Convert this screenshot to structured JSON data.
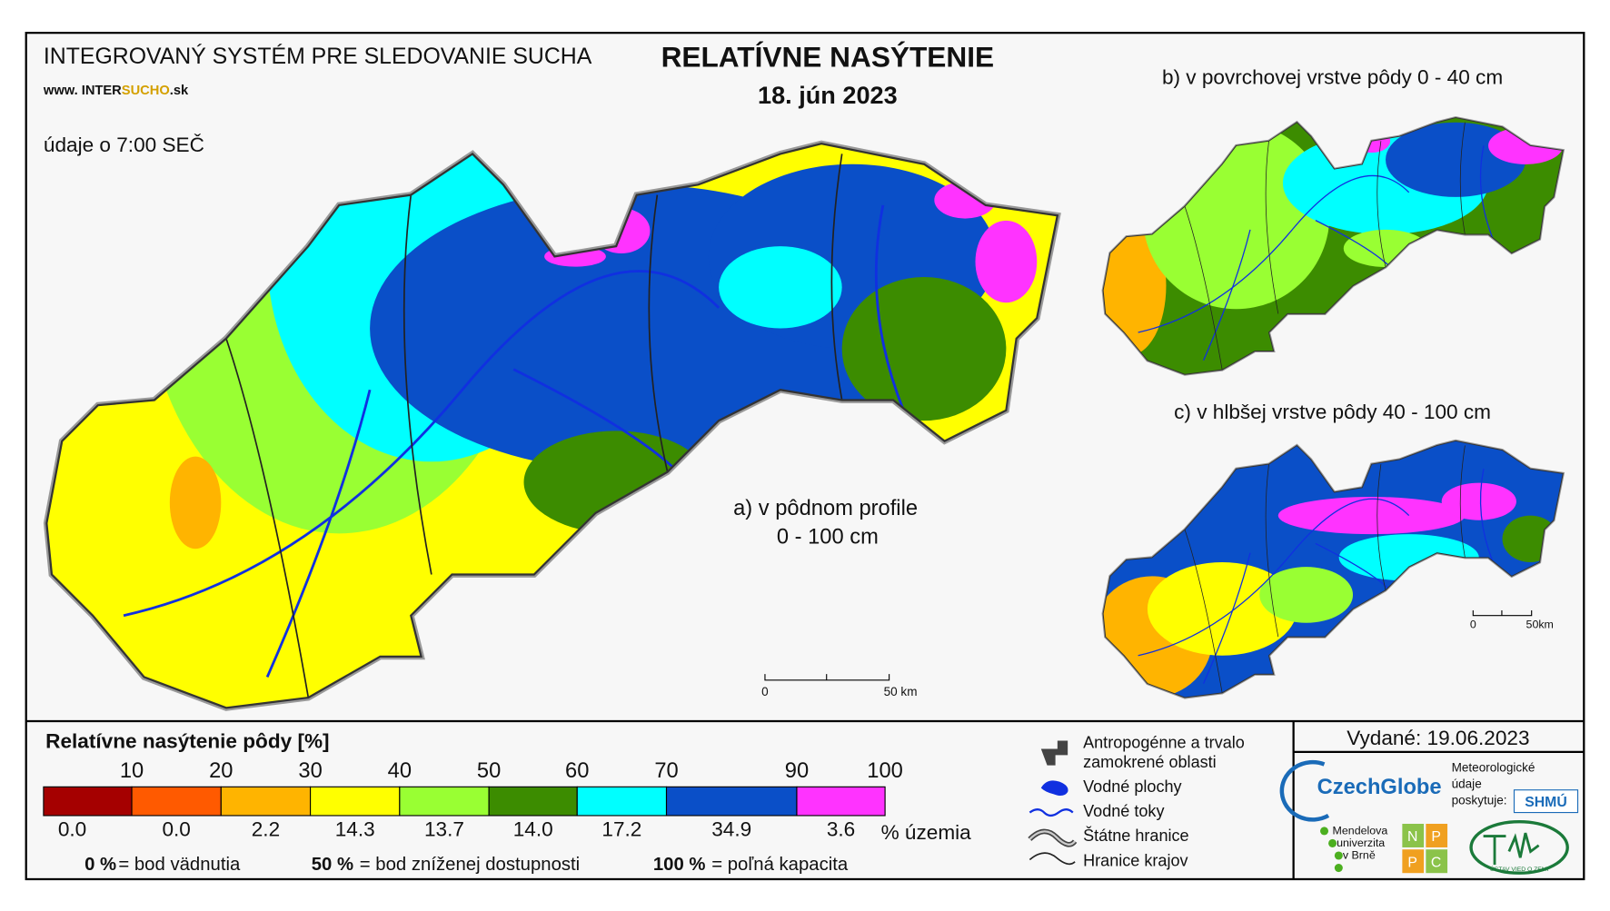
{
  "header": {
    "system_title": "INTEGROVANÝ SYSTÉM PRE SLEDOVANIE SUCHA",
    "website": {
      "prefix": "www. INTER",
      "highlight": "SUCHO",
      "suffix": ".sk"
    },
    "time_note": "údaje o 7:00 SEČ",
    "title": "RELATÍVNE NASÝTENIE",
    "date": "18. jún 2023"
  },
  "maps": [
    {
      "label": "a) v pôdnom profile",
      "sublabel": "0 - 100 cm",
      "scale": [
        "0",
        "50 km"
      ]
    },
    {
      "label": "b) v povrchovej vrstve pôdy 0 - 40 cm"
    },
    {
      "label": "c) v hlbšej vrstve pôdy 40 - 100 cm",
      "scale": [
        "0",
        "50km"
      ]
    }
  ],
  "legend": {
    "title": "Relatívne nasýtenie pôdy [%]",
    "thresholds": [
      10,
      20,
      30,
      40,
      50,
      60,
      70,
      90,
      100
    ],
    "classes": [
      {
        "color": "#a50000",
        "share": "0.0"
      },
      {
        "color": "#ff5a00",
        "share": "0.0"
      },
      {
        "color": "#ffb400",
        "share": "2.2"
      },
      {
        "color": "#ffff00",
        "share": "14.3"
      },
      {
        "color": "#99ff33",
        "share": "13.7"
      },
      {
        "color": "#3c8c00",
        "share": "14.0"
      },
      {
        "color": "#00ffff",
        "share": "17.2"
      },
      {
        "color": "#0a4fc8",
        "share": "34.9"
      },
      {
        "color": "#ff33ff",
        "share": "3.6"
      }
    ],
    "share_unit": "% územia",
    "notes": [
      {
        "value": "0 %",
        "text": "= bod vädnutia"
      },
      {
        "value": "50 %",
        "text": "= bod zníženej dostupnosti"
      },
      {
        "value": "100 %",
        "text": "= poľná kapacita"
      }
    ]
  },
  "map_key": [
    [
      "Antropogénne a trvalo",
      "zamokrené oblasti"
    ],
    [
      "Vodné plochy"
    ],
    [
      "Vodné toky"
    ],
    [
      "Štátne hranice"
    ],
    [
      "Hranice krajov"
    ]
  ],
  "footer": {
    "issued": "Vydané: 19.06.2023",
    "provider": [
      "Meteorologické",
      "údaje",
      "poskytuje:"
    ],
    "czechglobe": "CzechGlobe",
    "mendel": [
      "Mendelova",
      "univerzita",
      "v Brně"
    ],
    "nppc": [
      "N",
      "P",
      "P",
      "C"
    ],
    "shmu": "SHMÚ",
    "uvz": "ÚSTAV VIED O ZEMI"
  }
}
